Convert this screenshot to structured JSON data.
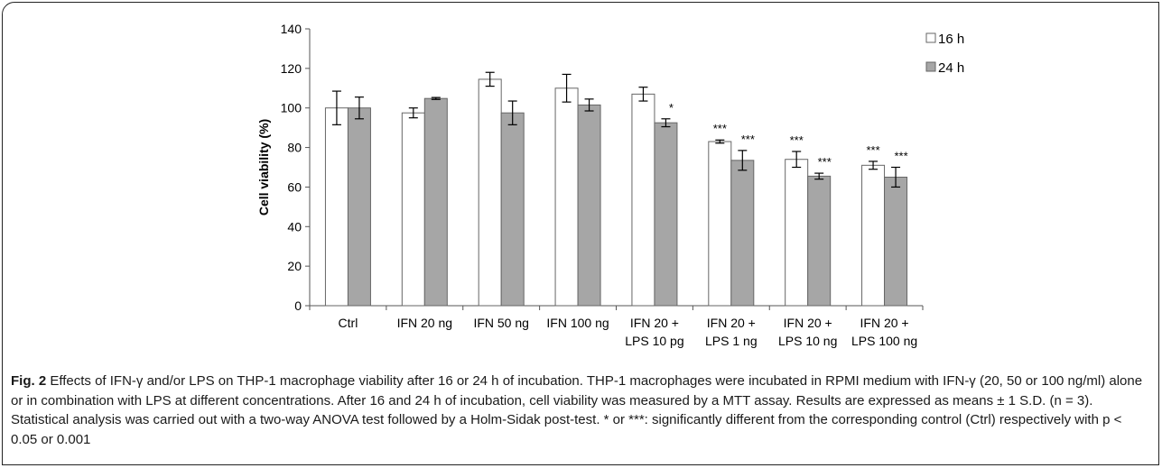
{
  "chart_data": {
    "type": "bar",
    "ylabel": "Cell viability (%)",
    "ylim": [
      0,
      140
    ],
    "yticks": [
      0,
      20,
      40,
      60,
      80,
      100,
      120,
      140
    ],
    "categories": [
      [
        "Ctrl"
      ],
      [
        "IFN 20 ng"
      ],
      [
        "IFN 50 ng"
      ],
      [
        "IFN 100 ng"
      ],
      [
        "IFN 20 +",
        "LPS 10 pg"
      ],
      [
        "IFN 20 +",
        "LPS 1 ng"
      ],
      [
        "IFN 20 +",
        "LPS 10 ng"
      ],
      [
        "IFN 20 +",
        "LPS 100 ng"
      ]
    ],
    "series": [
      {
        "name": "16 h",
        "color": "#ffffff",
        "values": [
          100,
          97.5,
          114.5,
          110,
          107,
          83,
          74,
          71
        ],
        "errors": [
          8.5,
          2.5,
          3.5,
          7,
          3.5,
          0.8,
          4,
          2
        ],
        "annotations": [
          "",
          "",
          "",
          "",
          "",
          "***",
          "***",
          "***"
        ]
      },
      {
        "name": "24 h",
        "color": "#a6a6a6",
        "values": [
          100,
          104.8,
          97.5,
          101.5,
          92.5,
          73.5,
          65.5,
          65
        ],
        "errors": [
          5.5,
          0.5,
          6,
          3,
          2,
          5,
          1.5,
          5
        ],
        "annotations": [
          "",
          "",
          "",
          "",
          "*",
          "***",
          "***",
          "***"
        ]
      }
    ],
    "legend": "top-right",
    "grid": false
  },
  "caption": {
    "label": "Fig. 2",
    "text": " Effects of IFN-γ and/or LPS on THP-1 macrophage viability after 16 or 24 h of incubation. THP-1 macrophages were incubated in RPMI medium with IFN-γ (20, 50 or 100 ng/ml) alone or in combination with LPS at different concentrations. After 16 and 24 h of incubation, cell viability was measured by a MTT assay. Results are expressed as means ± 1 S.D. (n = 3). Statistical analysis was carried out with a two-way ANOVA test followed by a Holm-Sidak post-test. * or ***: significantly different from the corresponding control (Ctrl) respectively with p < 0.05 or 0.001"
  }
}
